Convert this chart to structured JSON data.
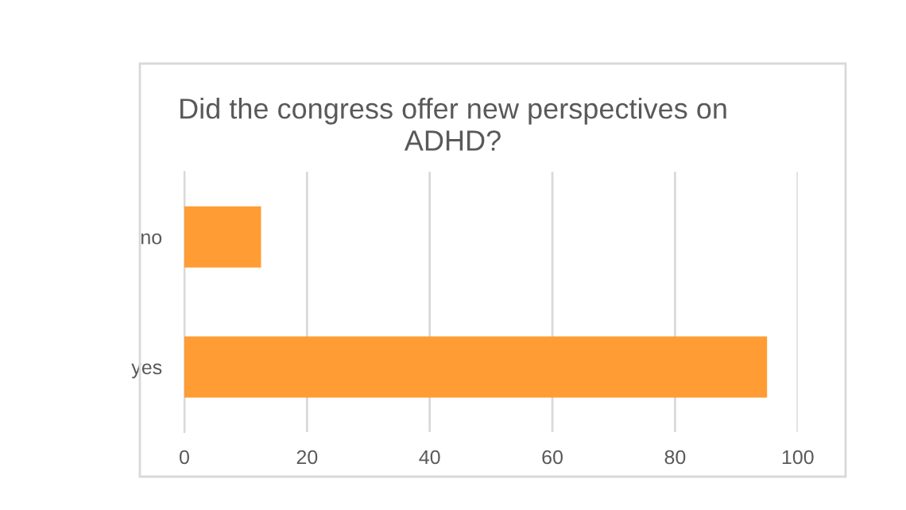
{
  "chart_data": {
    "type": "bar",
    "orientation": "horizontal",
    "title": "Did the congress offer new perspectives on\nADHD?",
    "categories": [
      "no",
      "yes"
    ],
    "values": [
      12.5,
      95
    ],
    "color": "#ff9c33",
    "xlim": [
      0,
      100
    ],
    "xticks": [
      0,
      20,
      40,
      60,
      80,
      100
    ],
    "grid": "x"
  }
}
